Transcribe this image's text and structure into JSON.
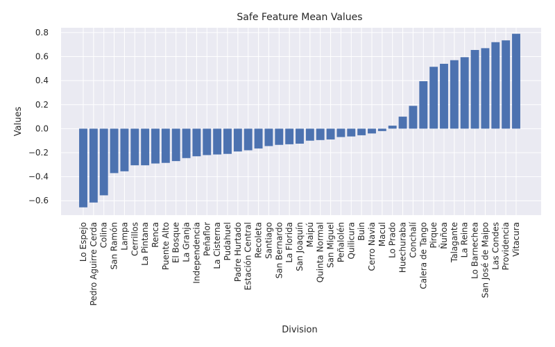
{
  "chart_data": {
    "type": "bar",
    "title": "Safe Feature Mean Values",
    "xlabel": "Division",
    "ylabel": "Values",
    "ylim": [
      -0.72,
      0.84
    ],
    "yticks": [
      -0.6,
      -0.4,
      -0.2,
      0.0,
      0.2,
      0.4,
      0.6,
      0.8
    ],
    "ytick_labels": [
      "−0.6",
      "−0.4",
      "−0.2",
      "0.0",
      "0.2",
      "0.4",
      "0.6",
      "0.8"
    ],
    "grid": true,
    "bar_color": "#4c72b0",
    "background_color": "#eaeaf2",
    "categories": [
      "Lo Espejo",
      "Pedro Aguirre Cerda",
      "Colina",
      "San Ramón",
      "Lampa",
      "Cerrillos",
      "La Pintana",
      "Renca",
      "Puente Alto",
      "El Bosque",
      "La Granja",
      "Independencia",
      "Peñaflor",
      "La Cisterna",
      "Pudahuel",
      "Padre Hurtado",
      "Estación Central",
      "Recoleta",
      "Santiago",
      "San Bernardo",
      "La Florida",
      "San Joaquín",
      "Maipú",
      "Quinta Normal",
      "San Miguel",
      "Peñalolén",
      "Quilicura",
      "Buin",
      "Cerro Navia",
      "Macul",
      "Lo Prado",
      "Huechuraba",
      "Conchalí",
      "Calera de Tango",
      "Pirque",
      "Ñuñoa",
      "Talagante",
      "La Reina",
      "Lo Barnechea",
      "San José de Maipo",
      "Las Condes",
      "Providencia",
      "Vitacura"
    ],
    "values": [
      -0.655,
      -0.615,
      -0.555,
      -0.37,
      -0.355,
      -0.305,
      -0.305,
      -0.29,
      -0.285,
      -0.27,
      -0.245,
      -0.23,
      -0.22,
      -0.215,
      -0.21,
      -0.19,
      -0.18,
      -0.165,
      -0.145,
      -0.135,
      -0.13,
      -0.125,
      -0.1,
      -0.095,
      -0.09,
      -0.07,
      -0.065,
      -0.055,
      -0.04,
      -0.02,
      0.025,
      0.1,
      0.19,
      0.395,
      0.515,
      0.54,
      0.57,
      0.595,
      0.655,
      0.67,
      0.72,
      0.735,
      0.79
    ]
  }
}
